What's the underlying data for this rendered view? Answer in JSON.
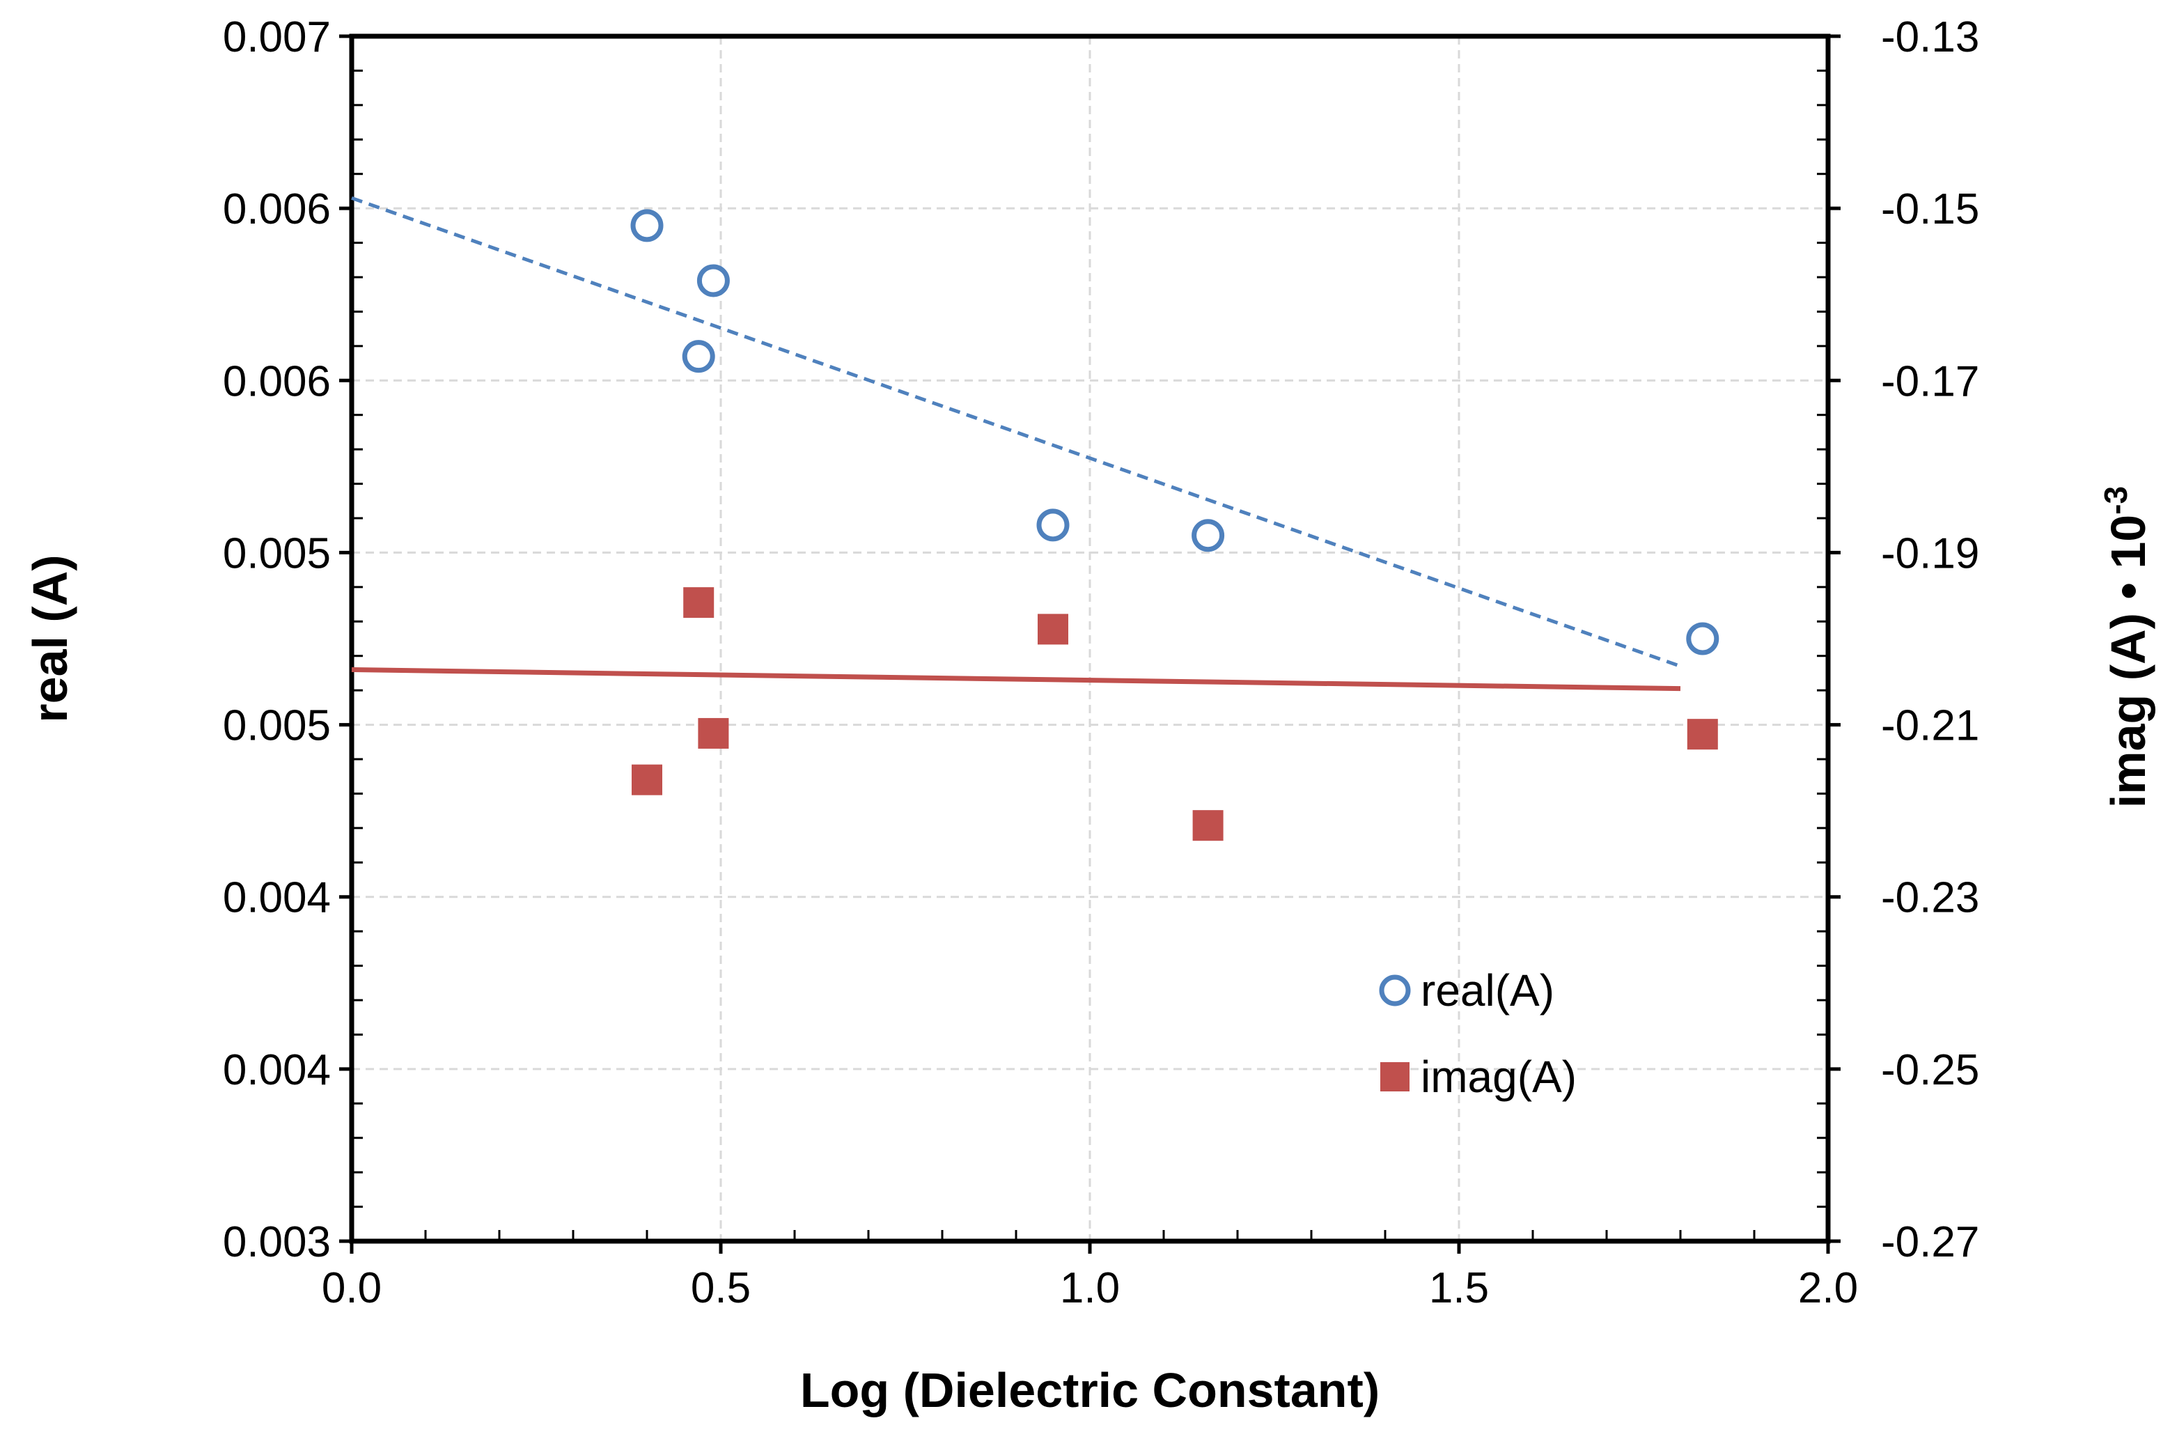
{
  "chart_data": {
    "type": "scatter",
    "xlabel": "Log (Dielectric Constant)",
    "ylabel_left": "real (A)",
    "ylabel_right_base": "imag (A) • 10",
    "ylabel_right_exp": "-3",
    "x_ticks": [
      "0.0",
      "0.5",
      "1.0",
      "1.5",
      "2.0"
    ],
    "y_left_ticks": [
      "0.007",
      "0.006",
      "0.006",
      "0.005",
      "0.005",
      "0.004",
      "0.004",
      "0.003"
    ],
    "y_right_ticks": [
      "-0.13",
      "-0.15",
      "-0.17",
      "-0.19",
      "-0.21",
      "-0.23",
      "-0.25",
      "-0.27"
    ],
    "xlim": [
      0,
      2
    ],
    "ylim_right": [
      -0.27,
      -0.13
    ],
    "ylim_left": [
      0.003,
      0.0065
    ],
    "grid": true,
    "legend_position": "lower-right",
    "colors": {
      "real": "#4f81bd",
      "imag": "#c0504d"
    },
    "series": [
      {
        "name": "real(A)",
        "axis": "left",
        "marker": "open-circle",
        "x": [
          0.4,
          0.47,
          0.49,
          0.95,
          1.16,
          1.83
        ],
        "y": [
          0.00595,
          0.00557,
          0.00579,
          0.00508,
          0.00505,
          0.00475
        ]
      },
      {
        "name": "imag(A)",
        "axis": "right",
        "marker": "filled-square",
        "x": [
          0.4,
          0.47,
          0.49,
          0.95,
          1.16,
          1.83
        ],
        "y": [
          -0.2164,
          -0.1958,
          -0.211,
          -0.1989,
          -0.2217,
          -0.2111
        ]
      }
    ],
    "trendlines": [
      {
        "series": "real(A)",
        "axis": "left",
        "style": "dashed",
        "x": [
          0,
          1.8
        ],
        "y": [
          0.00603,
          0.00467
        ]
      },
      {
        "series": "imag(A)",
        "axis": "right",
        "style": "solid",
        "x": [
          0,
          1.8
        ],
        "y": [
          -0.2036,
          -0.2058
        ]
      }
    ]
  }
}
